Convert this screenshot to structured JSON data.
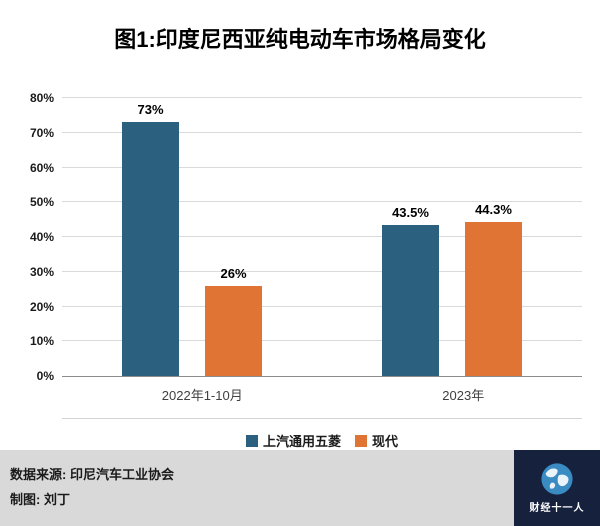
{
  "title": "图1:印度尼西亚纯电动车市场格局变化",
  "chart_data": {
    "type": "bar",
    "title": "图1:印度尼西亚纯电动车市场格局变化",
    "categories": [
      "2022年1-10月",
      "2023年"
    ],
    "series": [
      {
        "name": "上汽通用五菱",
        "color": "#2b617f",
        "values": [
          73,
          43.5
        ]
      },
      {
        "name": "现代",
        "color": "#df7435",
        "values": [
          26,
          44.3
        ]
      }
    ],
    "data_labels": [
      [
        "73%",
        "43.5%"
      ],
      [
        "26%",
        "44.3%"
      ]
    ],
    "ylabel": "",
    "ylim": [
      0,
      80
    ],
    "ytick_step": 10,
    "yticks": [
      "0%",
      "10%",
      "20%",
      "30%",
      "40%",
      "50%",
      "60%",
      "70%",
      "80%"
    ],
    "grid": true,
    "legend_position": "bottom"
  },
  "footer": {
    "source": "数据来源: 印尼汽车工业协会",
    "credit": "制图: 刘丁",
    "logo_text": "财经十一人"
  }
}
